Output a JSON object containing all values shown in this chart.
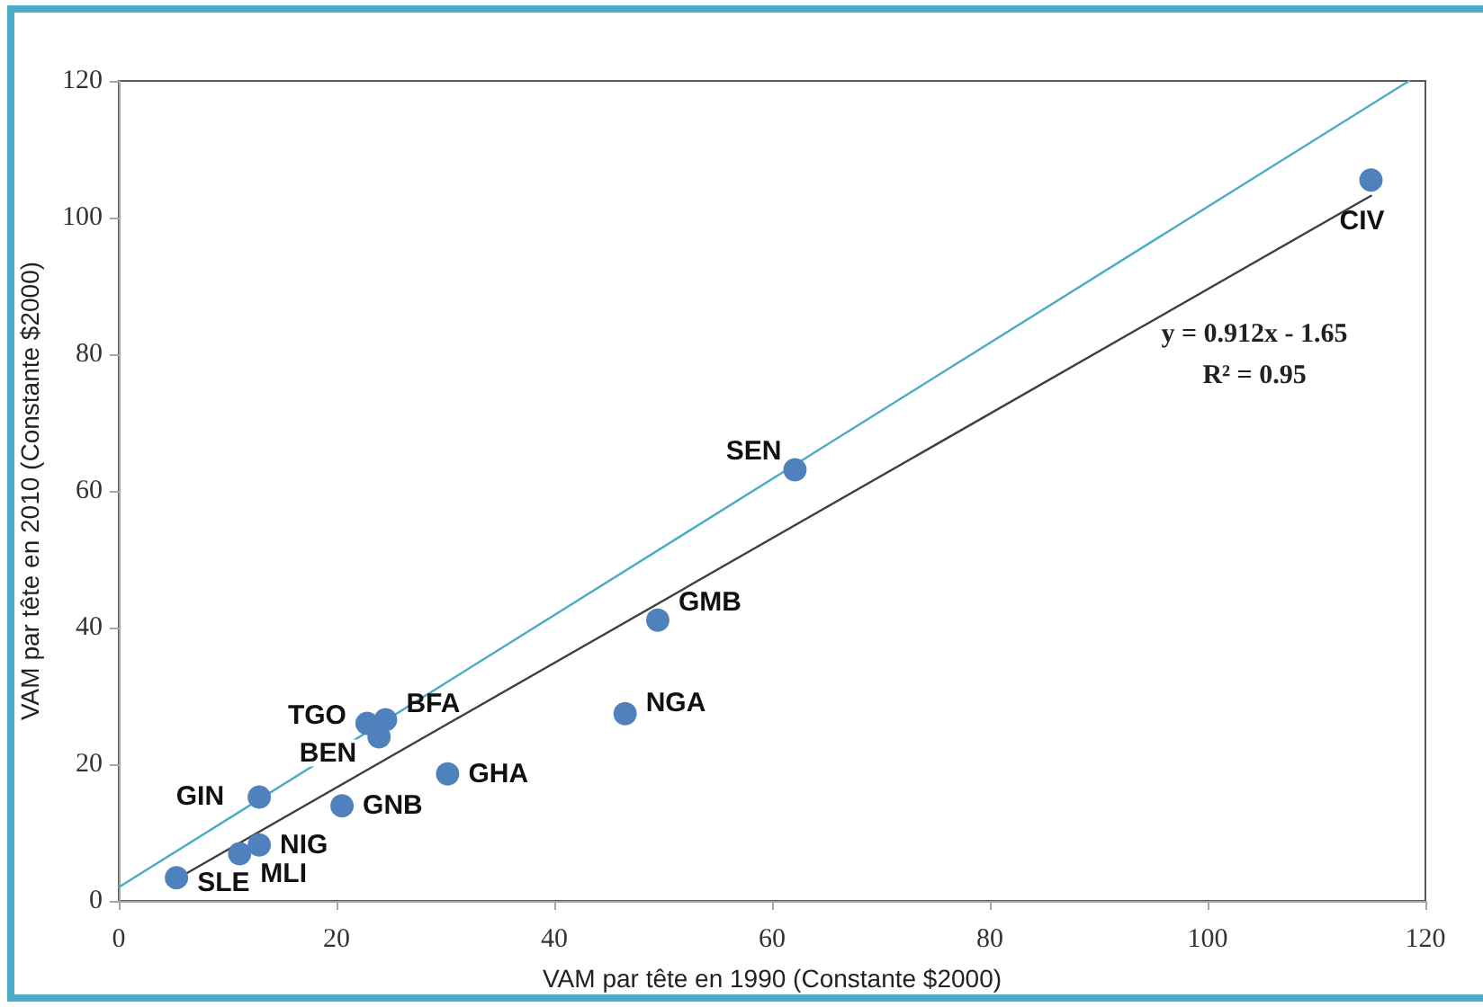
{
  "chart_data": {
    "type": "scatter",
    "xlabel": "VAM par tête en 1990 (Constante $2000)",
    "ylabel": "VAM par tête en 2010 (Constante $2000)",
    "xlim": [
      0,
      120
    ],
    "xticks": [
      0,
      20,
      40,
      60,
      80,
      100,
      120
    ],
    "ylim": [
      0,
      120
    ],
    "yticks": [
      0,
      20,
      40,
      60,
      80,
      100,
      120
    ],
    "grid": false,
    "marker": "circle",
    "annotations": [
      "y = 0.912x - 1.65",
      "R² = 0.95"
    ],
    "series": [
      {
        "color": "#4f81bd",
        "x": [
          5.3,
          11.1,
          12.9,
          12.9,
          20.5,
          22.8,
          24.5,
          23.9,
          30.2,
          46.5,
          49.5,
          62.1,
          115
        ],
        "values": [
          3.4,
          6.9,
          8.2,
          15.2,
          13.9,
          26.0,
          26.5,
          24.0,
          18.6,
          27.4,
          41.1,
          63.1,
          105.5
        ],
        "value_labels": [
          "SLE",
          "MLI",
          "NIG",
          "GIN",
          "GNB",
          "TGO",
          "BFA",
          "BEN",
          "GHA",
          "NGA",
          "GMB",
          "SEN",
          "CIV"
        ]
      },
      {
        "type": "line",
        "color": "#4bacc6",
        "x": [
          0,
          118.5
        ],
        "values": [
          2,
          120
        ],
        "marker": "none"
      },
      {
        "type": "line",
        "color": "#404040",
        "x": [
          5.3,
          115
        ],
        "values": [
          3.2,
          103.2
        ],
        "marker": "none"
      }
    ]
  }
}
